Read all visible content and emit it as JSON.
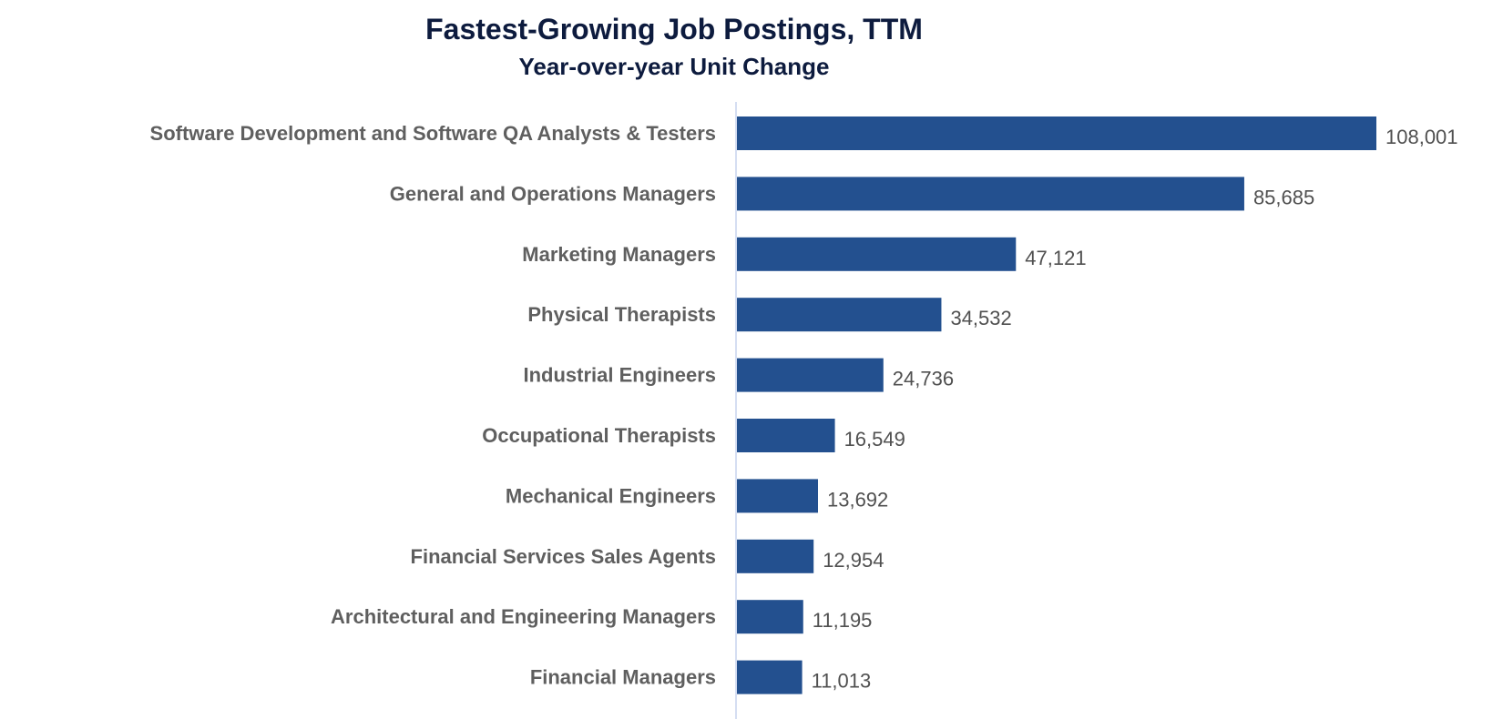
{
  "chart_data": {
    "type": "bar",
    "orientation": "horizontal",
    "title": "Fastest-Growing Job Postings, TTM",
    "subtitle": "Year-over-year Unit Change",
    "categories": [
      "Software Development and Software QA Analysts & Testers",
      "General and Operations Managers",
      "Marketing Managers",
      "Physical Therapists",
      "Industrial Engineers",
      "Occupational Therapists",
      "Mechanical Engineers",
      "Financial Services Sales Agents",
      "Architectural and Engineering Managers",
      "Financial Managers"
    ],
    "values": [
      108001,
      85685,
      47121,
      34532,
      24736,
      16549,
      13692,
      12954,
      11195,
      11013
    ],
    "value_labels": [
      "108,001",
      "85,685",
      "47,121",
      "34,532",
      "24,736",
      "16,549",
      "13,692",
      "12,954",
      "11,195",
      "11,013"
    ],
    "xlim": [
      0,
      108001
    ],
    "grid": false,
    "legend": "none",
    "bar_color": "#23508f",
    "axis_color": "#c7d3ee"
  }
}
